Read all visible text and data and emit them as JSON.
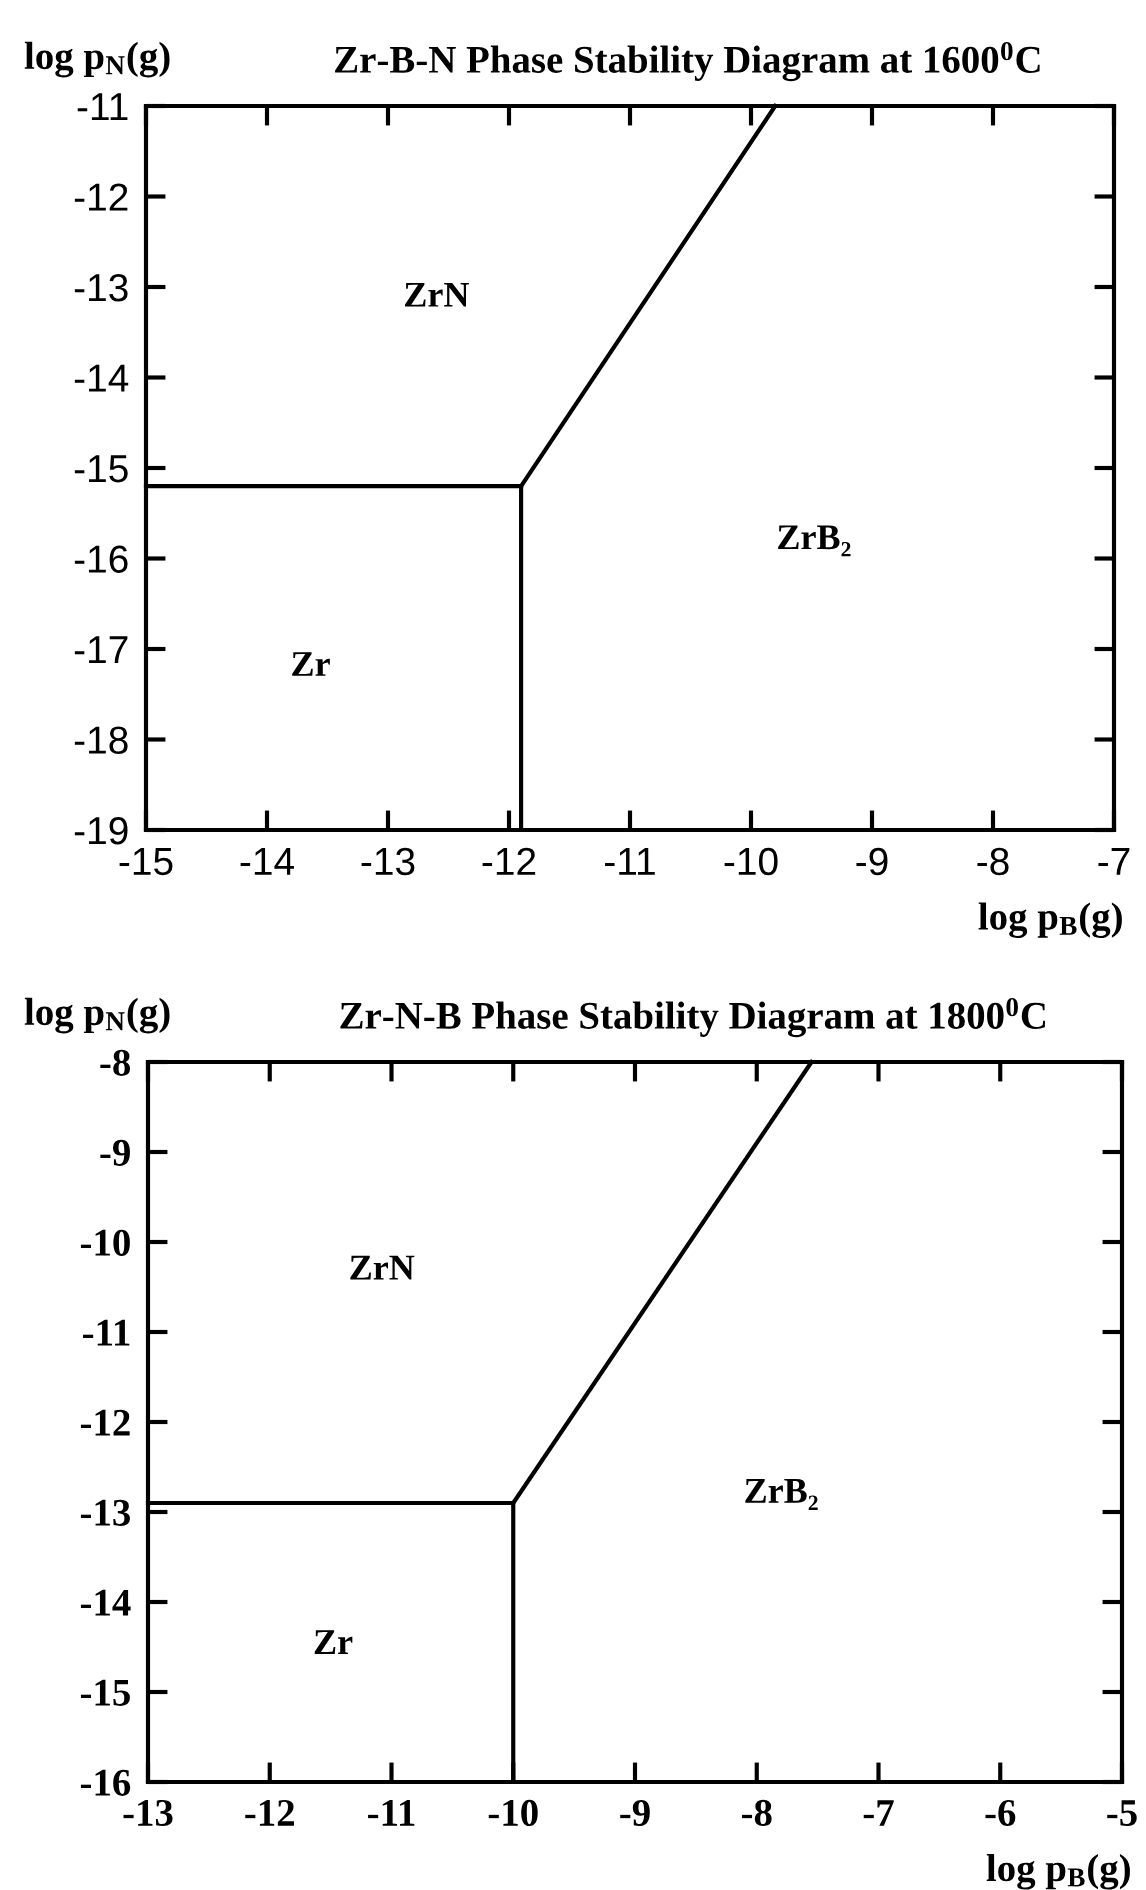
{
  "chart_data": [
    {
      "type": "line",
      "title": "Zr-B-N Phase Stability Diagram at 1600$^{0}$C",
      "xlabel": "log p$_{B}$(g)",
      "ylabel": "log p$_{N}$(g)",
      "series": [
        {
          "color": "#000000",
          "x": [
            -15,
            -11.9
          ],
          "values": [
            -15.2,
            -15.2
          ]
        },
        {
          "color": "#000000",
          "x": [
            -11.9,
            -11.9
          ],
          "values": [
            -19,
            -15.2
          ]
        },
        {
          "color": "#000000",
          "x": [
            -11.9,
            -9.8
          ],
          "values": [
            -15.2,
            -11
          ]
        }
      ],
      "annotations": [
        "ZrN",
        "Zr",
        "ZrB₂"
      ],
      "xlim": [
        -15,
        -7
      ],
      "xticks": [
        -15,
        -14,
        -13,
        -12,
        -11,
        -10,
        -9,
        -8,
        -7
      ],
      "ylim": [
        -19,
        -11
      ],
      "yticks": [
        -19,
        -18,
        -17,
        -16,
        -15,
        -14,
        -13,
        -12,
        -11
      ],
      "grid": false,
      "legend": false,
      "marker": "none",
      "line_style": "solid"
    },
    {
      "type": "line",
      "title": "Zr-N-B Phase Stability Diagram at 1800$^{0}$C",
      "xlabel": "log p$_{B}$(g)",
      "ylabel": "log p$_{N}$(g)",
      "series": [
        {
          "color": "#000000",
          "x": [
            -13,
            -10,
            -10
          ],
          "values": [
            -12.9,
            -12.9,
            -16
          ]
        },
        {
          "color": "#000000",
          "x": [
            -10,
            -7.55
          ],
          "values": [
            -12.9,
            -8
          ]
        }
      ],
      "annotations": [
        "ZrN",
        "Zr",
        "ZrB₂"
      ],
      "xlim": [
        -13,
        -5
      ],
      "xticks": [
        -13,
        -12,
        -11,
        -10,
        -9,
        -8,
        -7,
        -6,
        -5
      ],
      "ylim": [
        -16,
        -8
      ],
      "yticks": [
        -16,
        -15,
        -14,
        -13,
        -12,
        -11,
        -10,
        -9,
        -8
      ],
      "grid": false,
      "legend": false,
      "marker": "none",
      "line_style": "solid"
    }
  ]
}
